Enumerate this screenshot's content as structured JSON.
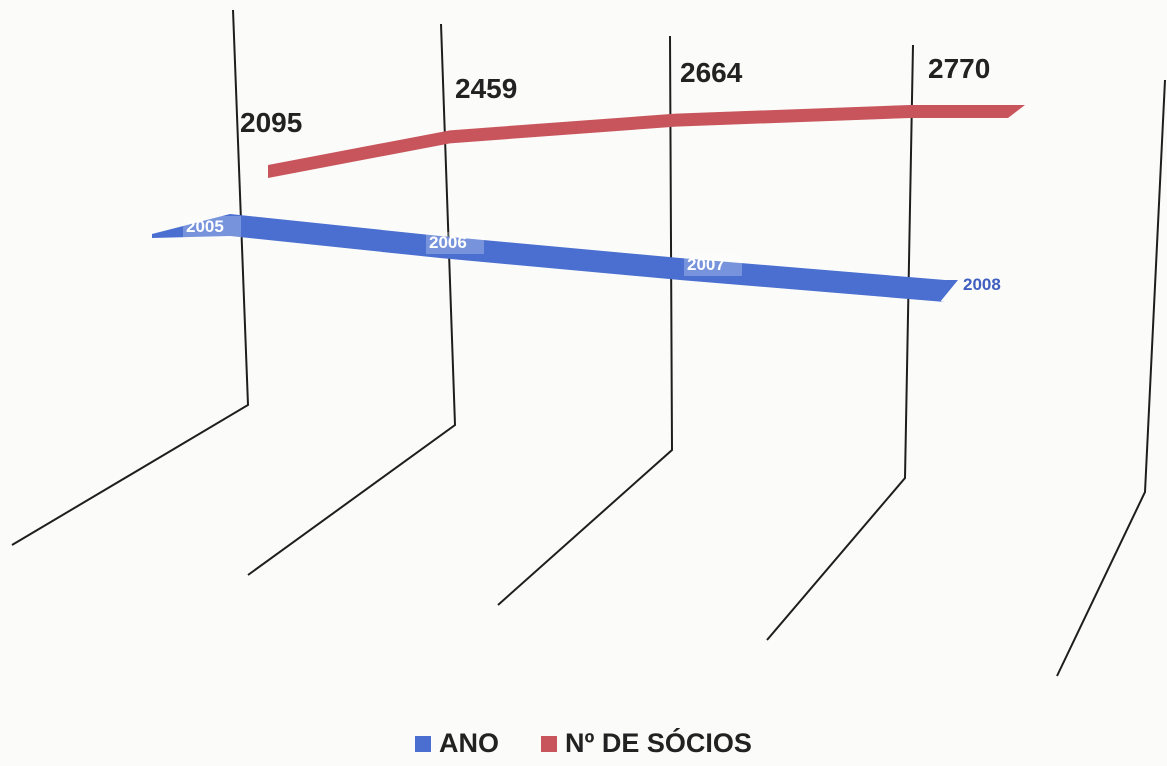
{
  "chart_data": {
    "type": "line",
    "view": "3d-ribbon",
    "categories": [
      "2005",
      "2006",
      "2007",
      "2008"
    ],
    "series": [
      {
        "name": "ANO",
        "values": [
          2005,
          2006,
          2007,
          2008
        ],
        "color": "#4a6fd0",
        "labels": [
          "2005",
          "2006",
          "2007",
          "2008"
        ]
      },
      {
        "name": "Nº DE SÓCIOS",
        "values": [
          2095,
          2459,
          2664,
          2770
        ],
        "color": "#c9555c",
        "labels": [
          "2095",
          "2459",
          "2664",
          "2770"
        ]
      }
    ],
    "title": "",
    "xlabel": "",
    "ylabel": "",
    "grid": true,
    "legend_position": "bottom"
  }
}
